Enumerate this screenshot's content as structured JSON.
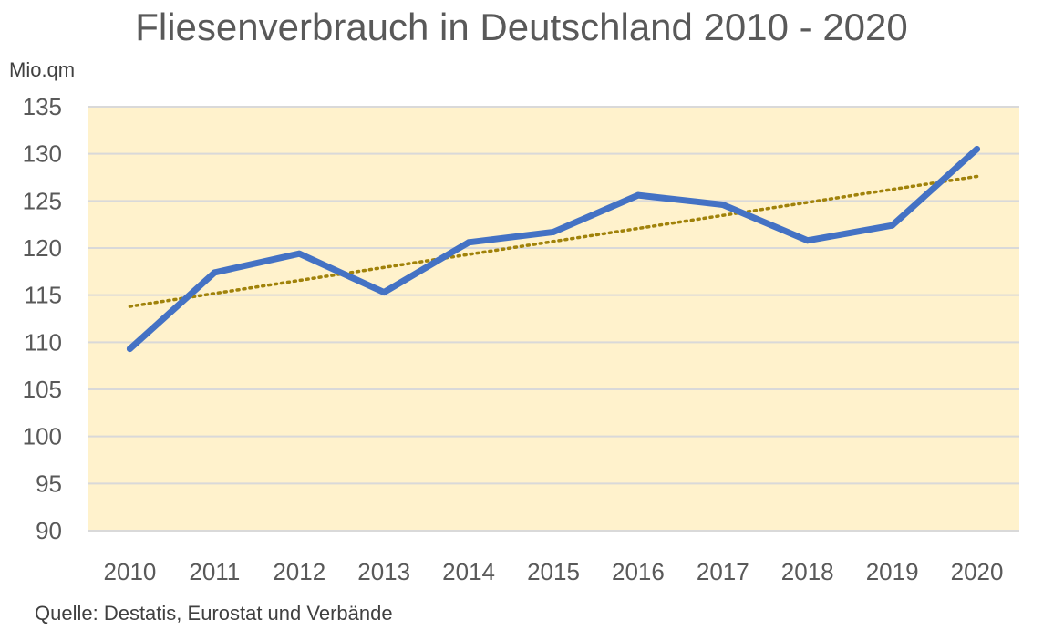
{
  "chart_data": {
    "type": "line",
    "title": "Fliesenverbrauch in Deutschland 2010 - 2020",
    "ylabel": "Mio.qm",
    "xlabel": "",
    "source": "Quelle: Destatis, Eurostat und Verbände",
    "categories": [
      "2010",
      "2011",
      "2012",
      "2013",
      "2014",
      "2015",
      "2016",
      "2017",
      "2018",
      "2019",
      "2020"
    ],
    "series": [
      {
        "values": [
          109.3,
          117.4,
          119.4,
          115.3,
          120.6,
          121.7,
          125.6,
          124.6,
          120.8,
          122.4,
          130.5
        ]
      }
    ],
    "trendline": {
      "type": "linear",
      "style": "dotted",
      "start": 113.8,
      "end": 127.6
    },
    "ylim": [
      90,
      135
    ],
    "yticks": [
      90,
      95,
      100,
      105,
      110,
      115,
      120,
      125,
      130,
      135
    ],
    "grid": true,
    "legend": "none",
    "colors": {
      "series": "#4472C4",
      "trendline": "#A0820A",
      "plot_background": "#FFF2CC",
      "gridline": "#D9D9D9"
    }
  }
}
